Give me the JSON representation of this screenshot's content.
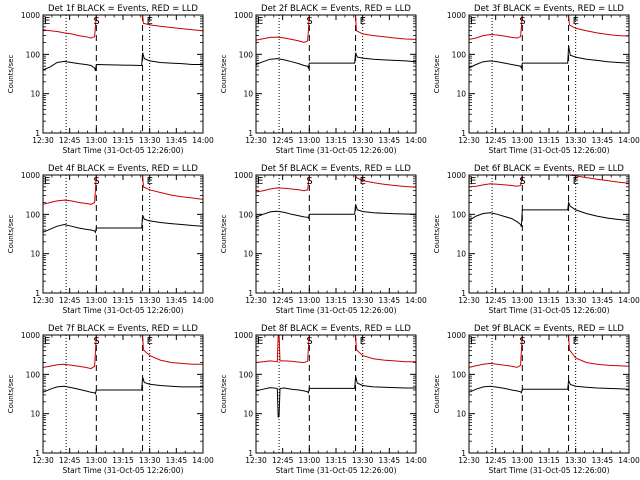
{
  "figure": {
    "background": "#ffffff",
    "events_color": "#000000",
    "lld_color": "#cc0000",
    "marker_s": "S",
    "marker_e": "E",
    "ylabel": "Counts/sec",
    "xlabel": "Start Time (31-Oct-05 12:26:00)",
    "x_tick_labels": [
      "12:30",
      "12:45",
      "13:00",
      "13:15",
      "13:30",
      "13:45",
      "14:00"
    ],
    "y_tick_labels": [
      "1",
      "10",
      "100",
      "1000"
    ]
  },
  "chart_data": [
    {
      "type": "line",
      "title": "Det 1f BLACK = Events, RED = LLD",
      "xlabel": "Start Time (31-Oct-05 12:26:00)",
      "ylabel": "Counts/sec",
      "x_unit": "minutes since 12:26:00",
      "xlim": [
        4,
        94
      ],
      "ylim": [
        1,
        1000
      ],
      "y_scale": "log",
      "dotted_lines_x": [
        17,
        64
      ],
      "dashed_lines_x": [
        34,
        60
      ],
      "series": [
        {
          "role": "lld",
          "color": "#cc0000",
          "x": [
            4,
            8,
            12,
            16,
            20,
            24,
            28,
            31,
            33,
            33.5,
            34,
            60,
            60.5,
            64,
            70,
            76,
            82,
            88,
            94
          ],
          "y": [
            420,
            400,
            380,
            350,
            330,
            300,
            280,
            260,
            280,
            500,
            1000,
            1000,
            620,
            560,
            520,
            480,
            450,
            420,
            400
          ]
        },
        {
          "role": "events",
          "color": "#000000",
          "x": [
            4,
            8,
            12,
            16,
            20,
            24,
            28,
            31,
            33,
            33.5,
            34,
            59.5,
            60,
            61,
            64,
            70,
            76,
            82,
            88,
            94
          ],
          "y": [
            40,
            48,
            62,
            66,
            62,
            58,
            55,
            52,
            45,
            38,
            55,
            52,
            110,
            78,
            68,
            62,
            60,
            58,
            55,
            55
          ]
        }
      ]
    },
    {
      "type": "line",
      "title": "Det 2f BLACK = Events, RED = LLD",
      "xlabel": "Start Time (31-Oct-05 12:26:00)",
      "ylabel": "Counts/sec",
      "x_unit": "minutes since 12:26:00",
      "xlim": [
        4,
        94
      ],
      "ylim": [
        1,
        1000
      ],
      "y_scale": "log",
      "dotted_lines_x": [
        17,
        64
      ],
      "dashed_lines_x": [
        34,
        60
      ],
      "series": [
        {
          "role": "lld",
          "color": "#cc0000",
          "x": [
            4,
            8,
            12,
            16,
            20,
            24,
            28,
            31,
            33,
            33.5,
            34,
            60,
            60.5,
            64,
            70,
            76,
            82,
            88,
            94
          ],
          "y": [
            230,
            250,
            270,
            275,
            260,
            240,
            220,
            200,
            220,
            400,
            1000,
            1000,
            400,
            330,
            300,
            280,
            260,
            245,
            240
          ]
        },
        {
          "role": "events",
          "color": "#000000",
          "x": [
            4,
            8,
            12,
            16,
            20,
            24,
            28,
            31,
            33,
            33.5,
            34,
            59.5,
            60,
            61,
            64,
            70,
            76,
            82,
            88,
            94
          ],
          "y": [
            55,
            65,
            75,
            78,
            72,
            65,
            58,
            52,
            50,
            45,
            60,
            60,
            110,
            85,
            80,
            75,
            72,
            70,
            68,
            65
          ]
        }
      ]
    },
    {
      "type": "line",
      "title": "Det 3f BLACK = Events, RED = LLD",
      "xlabel": "Start Time (31-Oct-05 12:26:00)",
      "ylabel": "Counts/sec",
      "x_unit": "minutes since 12:26:00",
      "xlim": [
        4,
        94
      ],
      "ylim": [
        1,
        1000
      ],
      "y_scale": "log",
      "dotted_lines_x": [
        17,
        64
      ],
      "dashed_lines_x": [
        34,
        60
      ],
      "series": [
        {
          "role": "lld",
          "color": "#cc0000",
          "x": [
            4,
            8,
            12,
            16,
            20,
            24,
            28,
            31,
            33,
            33.5,
            34,
            60,
            60.5,
            64,
            70,
            76,
            82,
            88,
            94
          ],
          "y": [
            240,
            260,
            300,
            320,
            310,
            290,
            270,
            260,
            280,
            500,
            1000,
            1000,
            560,
            460,
            400,
            350,
            320,
            300,
            290
          ]
        },
        {
          "role": "events",
          "color": "#000000",
          "x": [
            4,
            8,
            12,
            16,
            20,
            24,
            28,
            31,
            33,
            33.5,
            34,
            59.5,
            60,
            61,
            64,
            70,
            76,
            82,
            88,
            94
          ],
          "y": [
            45,
            55,
            65,
            68,
            65,
            60,
            55,
            52,
            50,
            45,
            60,
            60,
            160,
            95,
            85,
            75,
            70,
            65,
            62,
            60
          ]
        }
      ]
    },
    {
      "type": "line",
      "title": "Det 4f BLACK = Events, RED = LLD",
      "xlabel": "Start Time (31-Oct-05 12:26:00)",
      "ylabel": "Counts/sec",
      "x_unit": "minutes since 12:26:00",
      "xlim": [
        4,
        94
      ],
      "ylim": [
        1,
        1000
      ],
      "y_scale": "log",
      "dotted_lines_x": [
        17,
        64
      ],
      "dashed_lines_x": [
        34,
        60
      ],
      "series": [
        {
          "role": "lld",
          "color": "#cc0000",
          "x": [
            4,
            8,
            12,
            16,
            20,
            24,
            28,
            31,
            33,
            33.5,
            34,
            60,
            60.5,
            64,
            70,
            76,
            82,
            88,
            94
          ],
          "y": [
            180,
            200,
            220,
            230,
            220,
            200,
            190,
            180,
            200,
            400,
            1000,
            1000,
            500,
            420,
            360,
            310,
            280,
            260,
            240
          ]
        },
        {
          "role": "events",
          "color": "#000000",
          "x": [
            4,
            8,
            12,
            16,
            20,
            24,
            28,
            31,
            33,
            33.5,
            34,
            59.5,
            60,
            61,
            64,
            70,
            76,
            82,
            88,
            94
          ],
          "y": [
            35,
            42,
            50,
            55,
            50,
            45,
            42,
            40,
            38,
            35,
            45,
            45,
            95,
            75,
            68,
            62,
            58,
            55,
            52,
            50
          ]
        }
      ]
    },
    {
      "type": "line",
      "title": "Det 5f BLACK = Events, RED = LLD",
      "xlabel": "Start Time (31-Oct-05 12:26:00)",
      "ylabel": "Counts/sec",
      "x_unit": "minutes since 12:26:00",
      "xlim": [
        4,
        94
      ],
      "ylim": [
        1,
        1000
      ],
      "y_scale": "log",
      "dotted_lines_x": [
        17,
        64
      ],
      "dashed_lines_x": [
        34,
        60
      ],
      "series": [
        {
          "role": "lld",
          "color": "#cc0000",
          "x": [
            4,
            8,
            12,
            16,
            20,
            24,
            28,
            31,
            33,
            33.5,
            34,
            60,
            60.5,
            64,
            70,
            76,
            82,
            88,
            94
          ],
          "y": [
            370,
            400,
            440,
            470,
            460,
            440,
            420,
            400,
            420,
            600,
            1000,
            1000,
            850,
            720,
            640,
            580,
            540,
            510,
            490
          ]
        },
        {
          "role": "events",
          "color": "#000000",
          "x": [
            4,
            8,
            12,
            16,
            20,
            24,
            28,
            31,
            33,
            33.5,
            34,
            59.5,
            60,
            61,
            64,
            70,
            76,
            82,
            88,
            94
          ],
          "y": [
            85,
            100,
            115,
            120,
            112,
            100,
            92,
            86,
            84,
            80,
            100,
            100,
            180,
            130,
            118,
            110,
            106,
            104,
            102,
            100
          ]
        }
      ]
    },
    {
      "type": "line",
      "title": "Det 6f BLACK = Events, RED = LLD",
      "xlabel": "Start Time (31-Oct-05 12:26:00)",
      "ylabel": "Counts/sec",
      "x_unit": "minutes since 12:26:00",
      "xlim": [
        4,
        94
      ],
      "ylim": [
        1,
        1000
      ],
      "y_scale": "log",
      "dotted_lines_x": [
        17,
        64
      ],
      "dashed_lines_x": [
        34,
        60
      ],
      "series": [
        {
          "role": "lld",
          "color": "#cc0000",
          "x": [
            4,
            8,
            12,
            16,
            20,
            24,
            28,
            31,
            33,
            33.5,
            34,
            60,
            60.5,
            64,
            70,
            76,
            82,
            88,
            94
          ],
          "y": [
            500,
            520,
            560,
            600,
            580,
            560,
            540,
            520,
            540,
            700,
            1000,
            1000,
            1000,
            950,
            860,
            780,
            720,
            660,
            620
          ]
        },
        {
          "role": "events",
          "color": "#000000",
          "x": [
            4,
            8,
            12,
            16,
            20,
            24,
            28,
            31,
            33,
            33.5,
            34,
            59.5,
            60,
            61,
            64,
            70,
            76,
            82,
            88,
            94
          ],
          "y": [
            70,
            90,
            105,
            110,
            100,
            88,
            78,
            65,
            55,
            48,
            130,
            130,
            200,
            160,
            130,
            105,
            90,
            80,
            74,
            70
          ]
        }
      ]
    },
    {
      "type": "line",
      "title": "Det 7f BLACK = Events, RED = LLD",
      "xlabel": "Start Time (31-Oct-05 12:26:00)",
      "ylabel": "Counts/sec",
      "x_unit": "minutes since 12:26:00",
      "xlim": [
        4,
        94
      ],
      "ylim": [
        1,
        1000
      ],
      "y_scale": "log",
      "dotted_lines_x": [
        17,
        64
      ],
      "dashed_lines_x": [
        34,
        60
      ],
      "series": [
        {
          "role": "lld",
          "color": "#cc0000",
          "x": [
            4,
            8,
            12,
            16,
            20,
            24,
            28,
            31,
            33,
            33.5,
            34,
            60,
            60.5,
            64,
            70,
            76,
            82,
            88,
            94
          ],
          "y": [
            150,
            160,
            175,
            180,
            170,
            160,
            150,
            140,
            160,
            350,
            1000,
            1000,
            420,
            300,
            230,
            200,
            190,
            180,
            180
          ]
        },
        {
          "role": "events",
          "color": "#000000",
          "x": [
            4,
            8,
            12,
            16,
            20,
            24,
            28,
            31,
            33,
            33.5,
            34,
            59.5,
            60,
            61,
            64,
            70,
            76,
            82,
            88,
            94
          ],
          "y": [
            35,
            42,
            48,
            50,
            46,
            42,
            38,
            35,
            34,
            32,
            40,
            40,
            85,
            62,
            56,
            52,
            50,
            48,
            48,
            48
          ]
        }
      ]
    },
    {
      "type": "line",
      "title": "Det 8f BLACK = Events, RED = LLD",
      "xlabel": "Start Time (31-Oct-05 12:26:00)",
      "ylabel": "Counts/sec",
      "x_unit": "minutes since 12:26:00",
      "xlim": [
        4,
        94
      ],
      "ylim": [
        1,
        1000
      ],
      "y_scale": "log",
      "dotted_lines_x": [
        17,
        64
      ],
      "dashed_lines_x": [
        34,
        60
      ],
      "series": [
        {
          "role": "lld",
          "color": "#cc0000",
          "x": [
            4,
            8,
            12,
            16,
            16.5,
            17,
            17.5,
            20,
            24,
            28,
            31,
            33,
            33.5,
            34,
            60,
            60.5,
            64,
            70,
            76,
            82,
            88,
            94
          ],
          "y": [
            200,
            210,
            220,
            210,
            1000,
            1000,
            220,
            220,
            215,
            205,
            200,
            215,
            450,
            1000,
            1000,
            420,
            300,
            250,
            230,
            220,
            210,
            210
          ]
        },
        {
          "role": "events",
          "color": "#000000",
          "x": [
            4,
            8,
            12,
            16,
            16.5,
            17,
            17.5,
            20,
            24,
            28,
            31,
            33,
            33.5,
            34,
            59.5,
            60,
            61,
            64,
            70,
            76,
            82,
            88,
            94
          ],
          "y": [
            38,
            42,
            46,
            44,
            8,
            9,
            44,
            45,
            42,
            40,
            38,
            36,
            34,
            44,
            44,
            90,
            60,
            52,
            48,
            47,
            46,
            45,
            45
          ]
        }
      ]
    },
    {
      "type": "line",
      "title": "Det 9f BLACK = Events, RED = LLD",
      "xlabel": "Start Time (31-Oct-05 12:26:00)",
      "ylabel": "Counts/sec",
      "x_unit": "minutes since 12:26:00",
      "xlim": [
        4,
        94
      ],
      "ylim": [
        1,
        1000
      ],
      "y_scale": "log",
      "dotted_lines_x": [
        17,
        64
      ],
      "dashed_lines_x": [
        34,
        60
      ],
      "series": [
        {
          "role": "lld",
          "color": "#cc0000",
          "x": [
            4,
            8,
            12,
            16,
            20,
            24,
            28,
            31,
            33,
            33.5,
            34,
            60,
            60.5,
            64,
            70,
            76,
            82,
            88,
            94
          ],
          "y": [
            150,
            165,
            180,
            190,
            180,
            170,
            160,
            150,
            170,
            400,
            1000,
            1000,
            420,
            260,
            200,
            180,
            170,
            165,
            160
          ]
        },
        {
          "role": "events",
          "color": "#000000",
          "x": [
            4,
            8,
            12,
            16,
            20,
            24,
            28,
            31,
            33,
            33.5,
            34,
            59.5,
            60,
            61,
            64,
            70,
            76,
            82,
            88,
            94
          ],
          "y": [
            35,
            42,
            48,
            50,
            47,
            44,
            40,
            38,
            36,
            34,
            42,
            42,
            70,
            55,
            50,
            47,
            45,
            44,
            43,
            42
          ]
        }
      ]
    }
  ]
}
